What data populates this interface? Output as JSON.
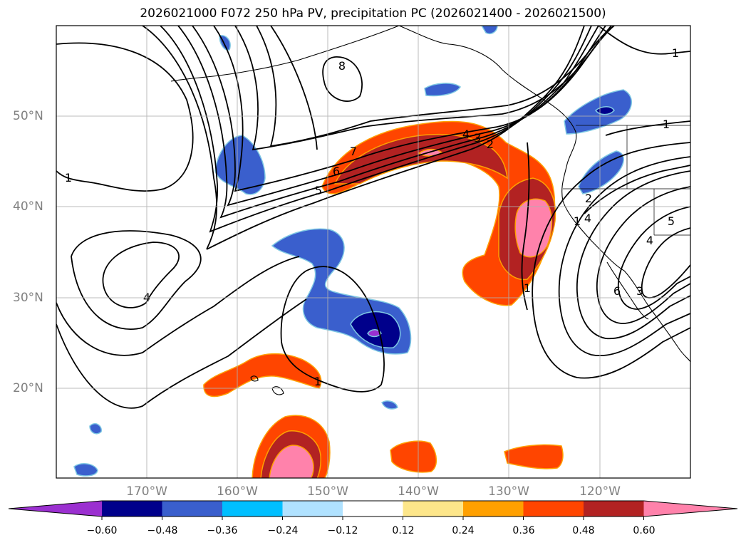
{
  "title": "2026021000 F072 250 hPa PV, precipitation PC (2026021400 - 2026021500)",
  "axes": {
    "lon_labels": [
      "170°W",
      "160°W",
      "150°W",
      "140°W",
      "130°W",
      "120°W"
    ],
    "lat_labels": [
      "50°N",
      "40°N",
      "30°N",
      "20°N"
    ],
    "gridlines": true
  },
  "colorbar": {
    "orientation": "horizontal",
    "extend": "both",
    "tick_labels": [
      "−0.60",
      "−0.48",
      "−0.36",
      "−0.24",
      "−0.12",
      "0.12",
      "0.24",
      "0.36",
      "0.48",
      "0.60"
    ],
    "colors": [
      "#9b30d0",
      "#00008b",
      "#3a5fcd",
      "#00bfff",
      "#b0e2ff",
      "#ffffff",
      "#fde68a",
      "#ffa000",
      "#ff4500",
      "#b22222",
      "#ff82ab"
    ]
  },
  "contour_labels": [
    "8",
    "1",
    "1",
    "1",
    "4",
    "3",
    "2",
    "7",
    "6",
    "5",
    "4",
    "1",
    "2",
    "4",
    "5",
    "4",
    "6",
    "3",
    "1",
    "1"
  ],
  "fill_colors": {
    "neg_weak": "#3a5fcd",
    "neg_strong": "#00008b",
    "neg_extreme": "#9b30d0",
    "pos_moderate": "#ff4500",
    "pos_strong": "#b22222",
    "pos_extreme": "#ff82ab",
    "pos_weak": "#ffa000"
  }
}
